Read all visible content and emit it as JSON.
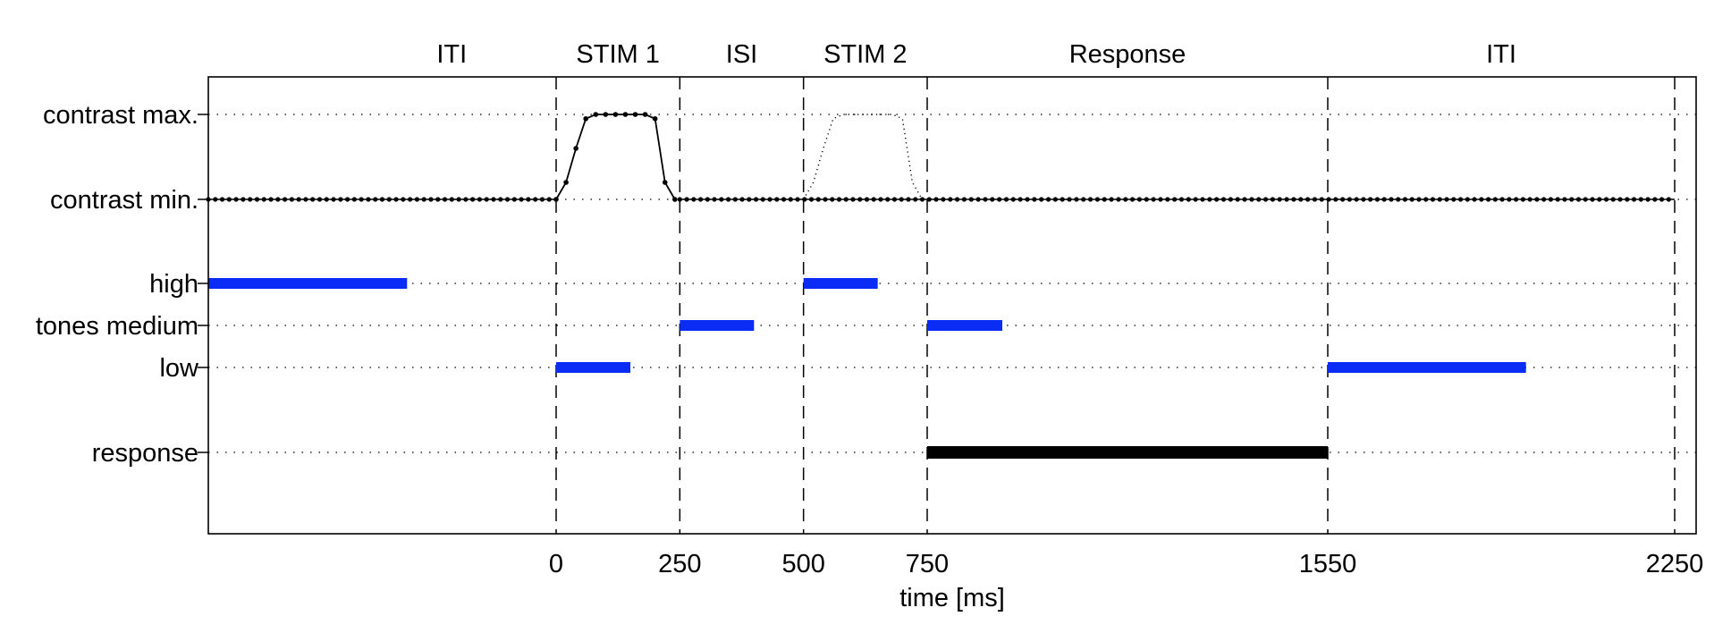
{
  "colors": {
    "tone_bar": "#0a2cf5",
    "response_bar": "#000000",
    "line": "#000000"
  },
  "phases": [
    {
      "label": "ITI",
      "start": -420,
      "end": 0
    },
    {
      "label": "STIM 1",
      "start": 0,
      "end": 250
    },
    {
      "label": "ISI",
      "start": 250,
      "end": 500
    },
    {
      "label": "STIM 2",
      "start": 500,
      "end": 750
    },
    {
      "label": "Response",
      "start": 750,
      "end": 1550
    },
    {
      "label": "ITI",
      "start": 1550,
      "end": 2250
    }
  ],
  "rows": [
    {
      "key": "contrast_max",
      "label": "contrast max."
    },
    {
      "key": "contrast_min",
      "label": "contrast min."
    },
    {
      "key": "high",
      "label": "high"
    },
    {
      "key": "medium",
      "label": "tones medium"
    },
    {
      "key": "low",
      "label": "low"
    },
    {
      "key": "response",
      "label": "response"
    }
  ],
  "x_axis": {
    "label": "time [ms]",
    "ticks": [
      0,
      250,
      500,
      750,
      1550,
      2250
    ],
    "range": [
      -700,
      2285
    ]
  },
  "phase_boundaries": [
    0,
    250,
    500,
    750,
    1550,
    2250
  ],
  "tone_bars": [
    {
      "row": "high",
      "start": -700,
      "end": -300
    },
    {
      "row": "low",
      "start": 0,
      "end": 150
    },
    {
      "row": "medium",
      "start": 250,
      "end": 400
    },
    {
      "row": "high",
      "start": 500,
      "end": 650
    },
    {
      "row": "medium",
      "start": 750,
      "end": 900
    },
    {
      "row": "low",
      "start": 1550,
      "end": 1950
    }
  ],
  "response_bar": {
    "start": 750,
    "end": 1550
  },
  "contrast_stim1": [
    {
      "t": 0,
      "level": 0
    },
    {
      "t": 20,
      "level": 0.2
    },
    {
      "t": 40,
      "level": 0.6
    },
    {
      "t": 60,
      "level": 0.95
    },
    {
      "t": 80,
      "level": 1
    },
    {
      "t": 100,
      "level": 1
    },
    {
      "t": 120,
      "level": 1
    },
    {
      "t": 140,
      "level": 1
    },
    {
      "t": 160,
      "level": 1
    },
    {
      "t": 180,
      "level": 1
    },
    {
      "t": 200,
      "level": 0.95
    },
    {
      "t": 220,
      "level": 0.2
    },
    {
      "t": 240,
      "level": 0
    }
  ],
  "contrast_stim2": [
    {
      "t": 500,
      "level": 0
    },
    {
      "t": 520,
      "level": 0.2
    },
    {
      "t": 540,
      "level": 0.6
    },
    {
      "t": 560,
      "level": 0.95
    },
    {
      "t": 580,
      "level": 1
    },
    {
      "t": 600,
      "level": 1
    },
    {
      "t": 620,
      "level": 1
    },
    {
      "t": 640,
      "level": 1
    },
    {
      "t": 660,
      "level": 1
    },
    {
      "t": 680,
      "level": 1
    },
    {
      "t": 700,
      "level": 0.95
    },
    {
      "t": 720,
      "level": 0.2
    },
    {
      "t": 740,
      "level": 0
    }
  ]
}
